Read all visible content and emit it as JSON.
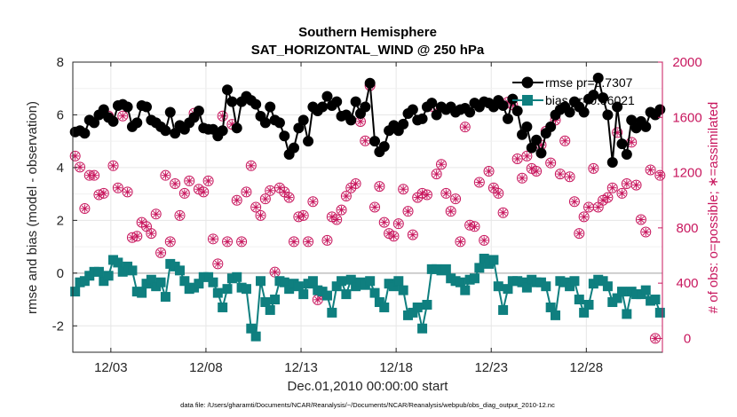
{
  "chart_data": {
    "type": "line",
    "title": "Southern Hemisphere",
    "subtitle": "SAT_HORIZONTAL_WIND @ 250 hPa",
    "xlabel": "Dec.01,2010 00:00:00 start",
    "ylabel": "rmse and bias (model - observation)",
    "ylabel_right": "# of obs: o=possible; ∗=assimilated",
    "x_ticks": [
      "12/03",
      "12/08",
      "12/13",
      "12/18",
      "12/23",
      "12/28"
    ],
    "x_tick_days": [
      3,
      8,
      13,
      18,
      23,
      28
    ],
    "xlim": [
      1.0,
      32.0
    ],
    "ylim": [
      -3,
      8
    ],
    "y_ticks": [
      "-2",
      "0",
      "2",
      "4",
      "6",
      "8"
    ],
    "y_tick_values": [
      -2,
      0,
      2,
      4,
      6,
      8
    ],
    "ylim_right": [
      -100,
      2000
    ],
    "y_ticks_right": [
      "0",
      "400",
      "800",
      "1200",
      "1600",
      "2000"
    ],
    "y_tick_values_right": [
      0,
      400,
      800,
      1200,
      1600,
      2000
    ],
    "zero_line": 0,
    "grid": true,
    "footnote": "data file: /Users/gharamti/Documents/NCAR/Reanalysis/~/Documents/NCAR/Reanalysis/webpub/obs_diag_output_2010-12.nc",
    "x": [
      1.125,
      1.375,
      1.625,
      1.875,
      2.125,
      2.375,
      2.625,
      2.875,
      3.125,
      3.375,
      3.625,
      3.875,
      4.125,
      4.375,
      4.625,
      4.875,
      5.125,
      5.375,
      5.625,
      5.875,
      6.125,
      6.375,
      6.625,
      6.875,
      7.125,
      7.375,
      7.625,
      7.875,
      8.125,
      8.375,
      8.625,
      8.875,
      9.125,
      9.375,
      9.625,
      9.875,
      10.125,
      10.375,
      10.625,
      10.875,
      11.125,
      11.375,
      11.625,
      11.875,
      12.125,
      12.375,
      12.625,
      12.875,
      13.125,
      13.375,
      13.625,
      13.875,
      14.125,
      14.375,
      14.625,
      14.875,
      15.125,
      15.375,
      15.625,
      15.875,
      16.125,
      16.375,
      16.625,
      16.875,
      17.125,
      17.375,
      17.625,
      17.875,
      18.125,
      18.375,
      18.625,
      18.875,
      19.125,
      19.375,
      19.625,
      19.875,
      20.125,
      20.375,
      20.625,
      20.875,
      21.125,
      21.375,
      21.625,
      21.875,
      22.125,
      22.375,
      22.625,
      22.875,
      23.125,
      23.375,
      23.625,
      23.875,
      24.125,
      24.375,
      24.625,
      24.875,
      25.125,
      25.375,
      25.625,
      25.875,
      26.125,
      26.375,
      26.625,
      26.875,
      27.125,
      27.375,
      27.625,
      27.875,
      28.125,
      28.375,
      28.625,
      28.875,
      29.125,
      29.375,
      29.625,
      29.875,
      30.125,
      30.375,
      30.625,
      30.875,
      31.125,
      31.375,
      31.625,
      31.875
    ],
    "series": [
      {
        "name": "rmse",
        "legend": "rmse pr=5.7307",
        "color": "#000000",
        "marker": "circle",
        "values": [
          5.35,
          5.4,
          5.3,
          5.8,
          5.7,
          6.0,
          6.2,
          5.9,
          5.75,
          6.35,
          6.4,
          6.3,
          5.55,
          5.7,
          6.35,
          6.3,
          5.8,
          5.7,
          5.55,
          5.4,
          6.1,
          5.3,
          5.6,
          5.45,
          5.7,
          5.9,
          6.15,
          5.5,
          5.45,
          5.45,
          5.2,
          5.4,
          6.95,
          6.5,
          5.5,
          6.5,
          6.7,
          6.55,
          6.4,
          5.95,
          5.7,
          6.3,
          5.8,
          5.7,
          5.2,
          4.5,
          4.75,
          5.5,
          5.8,
          5.0,
          6.3,
          6.15,
          6.3,
          6.7,
          6.35,
          6.5,
          5.95,
          6.0,
          5.8,
          6.5,
          6.05,
          6.3,
          7.2,
          5.0,
          4.6,
          4.8,
          5.4,
          5.6,
          5.4,
          5.65,
          6.05,
          6.2,
          5.8,
          5.85,
          6.3,
          6.45,
          6.0,
          6.3,
          6.2,
          6.3,
          6.1,
          6.2,
          6.25,
          6.1,
          6.45,
          6.3,
          6.5,
          6.45,
          6.3,
          6.55,
          6.35,
          5.85,
          6.6,
          6.15,
          5.25,
          5.55,
          4.75,
          5.05,
          4.55,
          5.3,
          5.55,
          6.0,
          6.2,
          6.3,
          6.1,
          6.5,
          6.3,
          6.1,
          6.6,
          6.75,
          7.4,
          6.65,
          6.0,
          4.2,
          6.3,
          4.9,
          4.5,
          5.8,
          5.5,
          5.75,
          5.55,
          6.1,
          6.0,
          6.2
        ]
      },
      {
        "name": "bias",
        "legend": "bias pr=0.56021",
        "color": "#0f7f7f",
        "marker": "square",
        "values": [
          -0.7,
          -0.35,
          -0.3,
          -0.1,
          0.05,
          0.05,
          -0.3,
          -0.1,
          0.5,
          0.4,
          0.05,
          0.25,
          0.1,
          -0.7,
          -0.75,
          -0.4,
          -0.25,
          -0.5,
          -0.35,
          -0.9,
          0.35,
          0.25,
          0.1,
          -0.3,
          -0.6,
          -0.55,
          -0.4,
          -0.15,
          -0.15,
          -0.35,
          -0.75,
          -1.3,
          -0.6,
          -0.2,
          -0.15,
          -0.55,
          -0.6,
          -2.1,
          -2.4,
          -0.3,
          -1.1,
          -1.4,
          -1.0,
          -0.3,
          -0.35,
          -0.6,
          -0.4,
          -0.5,
          -0.8,
          -0.4,
          -0.3,
          -0.65,
          -0.7,
          -0.85,
          -1.5,
          -0.5,
          -0.3,
          -0.8,
          -0.25,
          -0.5,
          -0.35,
          -0.45,
          -0.3,
          -0.75,
          -1.1,
          -1.3,
          -0.4,
          -0.5,
          -0.3,
          -0.65,
          -1.6,
          -1.5,
          -1.3,
          -2.1,
          -1.2,
          0.15,
          0.15,
          0.1,
          0.15,
          -0.2,
          -0.3,
          -0.35,
          -0.65,
          -0.25,
          -0.2,
          0.2,
          0.55,
          0.35,
          0.5,
          -0.5,
          -1.4,
          -0.6,
          -0.3,
          -0.3,
          -0.35,
          -0.55,
          -0.25,
          -0.35,
          -0.35,
          -0.5,
          -1.3,
          -1.6,
          -0.3,
          -0.35,
          -0.5,
          -0.3,
          -1.0,
          -1.5,
          -1.2,
          -0.4,
          -0.25,
          -0.3,
          -0.5,
          -1.1,
          -0.95,
          -0.7,
          -1.55,
          -0.7,
          -0.8,
          -0.8,
          -0.65,
          -1.05,
          -1.0,
          -1.5
        ]
      }
    ],
    "obs_series": [
      {
        "name": "possible",
        "marker": "circle",
        "color": "#c8175e",
        "values": [
          1320,
          1240,
          940,
          1180,
          1180,
          1040,
          1050,
          1610,
          1250,
          1090,
          1610,
          1060,
          730,
          740,
          840,
          810,
          760,
          900,
          620,
          1180,
          700,
          1120,
          890,
          1050,
          1140,
          1630,
          1080,
          1060,
          1140,
          720,
          540,
          1610,
          700,
          1550,
          1000,
          700,
          1060,
          1250,
          950,
          890,
          1010,
          1070,
          480,
          1090,
          1060,
          1020,
          700,
          880,
          890,
          700,
          990,
          280,
          320,
          710,
          880,
          860,
          930,
          1030,
          1090,
          1120,
          1570,
          1430,
          1830,
          950,
          1100,
          840,
          760,
          740,
          830,
          1080,
          920,
          750,
          1020,
          1050,
          1040,
          1680,
          1190,
          1260,
          1050,
          920,
          1010,
          700,
          1530,
          820,
          810,
          1130,
          710,
          1210,
          1090,
          1050,
          910,
          1710,
          1690,
          1300,
          1160,
          1320,
          1230,
          1210,
          1400,
          1500,
          1270,
          1580,
          1190,
          1430,
          1170,
          990,
          760,
          880,
          950,
          1230,
          950,
          1000,
          1020,
          1090,
          1490,
          1050,
          1120,
          1420,
          1110,
          860,
          770,
          1220,
          0,
          1180
        ]
      },
      {
        "name": "assimilated",
        "marker": "asterisk",
        "color": "#c8175e",
        "values": [
          1320,
          1240,
          940,
          1180,
          1180,
          1040,
          1050,
          1610,
          1250,
          1090,
          1610,
          1060,
          730,
          740,
          840,
          810,
          760,
          900,
          620,
          1180,
          700,
          1120,
          890,
          1050,
          1140,
          1630,
          1080,
          1060,
          1140,
          720,
          540,
          1610,
          700,
          1550,
          1000,
          700,
          1060,
          1250,
          950,
          890,
          1010,
          1070,
          480,
          1090,
          1060,
          1020,
          700,
          880,
          890,
          700,
          990,
          280,
          320,
          710,
          880,
          860,
          930,
          1030,
          1090,
          1120,
          1570,
          1430,
          1830,
          950,
          1100,
          840,
          760,
          740,
          830,
          1080,
          920,
          750,
          1020,
          1050,
          1040,
          1680,
          1190,
          1260,
          1050,
          920,
          1010,
          700,
          1530,
          820,
          810,
          1130,
          710,
          1210,
          1090,
          1050,
          910,
          1710,
          1690,
          1300,
          1160,
          1320,
          1230,
          1210,
          1400,
          1500,
          1270,
          1580,
          1190,
          1430,
          1170,
          990,
          760,
          880,
          950,
          1230,
          950,
          1000,
          1020,
          1090,
          1490,
          1050,
          1120,
          1420,
          1110,
          860,
          770,
          1220,
          0,
          1180
        ]
      }
    ]
  }
}
